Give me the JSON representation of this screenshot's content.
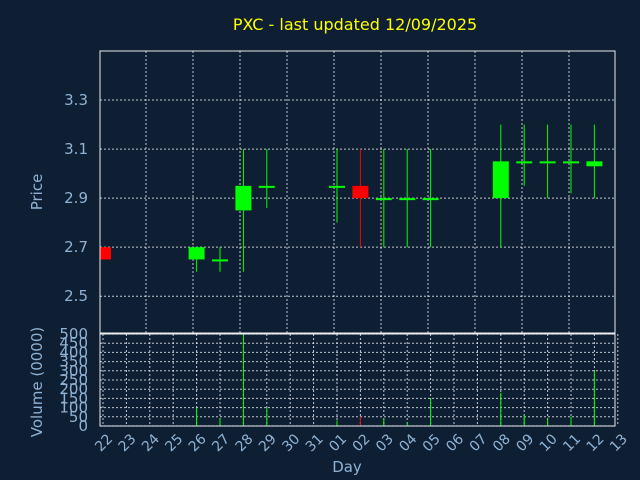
{
  "chart_data": {
    "type": "candlestick",
    "title": "PXC - last updated 12/09/2025",
    "ylabel": "Price",
    "volume_label": "Volume (0000)",
    "xlabel": "Day",
    "ylim": [
      2.35,
      3.5
    ],
    "yticks": [
      2.5,
      2.7,
      2.9,
      3.1,
      3.3
    ],
    "volume_ylim": [
      0,
      500
    ],
    "volume_yticks": [
      0,
      50,
      100,
      150,
      200,
      250,
      300,
      350,
      400,
      450,
      500
    ],
    "days": [
      "22",
      "23",
      "24",
      "25",
      "26",
      "27",
      "28",
      "29",
      "30",
      "31",
      "01",
      "02",
      "03",
      "04",
      "05",
      "06",
      "07",
      "08",
      "09",
      "10",
      "11",
      "12",
      "13"
    ],
    "candles": [
      {
        "day_index": 0,
        "open": 2.7,
        "high": 2.7,
        "low": 2.65,
        "close": 2.65,
        "volume": 0
      },
      {
        "day_index": 4,
        "open": 2.65,
        "high": 2.7,
        "low": 2.6,
        "close": 2.7,
        "volume": 100
      },
      {
        "day_index": 5,
        "open": 2.65,
        "high": 2.7,
        "low": 2.6,
        "close": 2.65,
        "volume": 40
      },
      {
        "day_index": 6,
        "open": 2.85,
        "high": 3.1,
        "low": 2.6,
        "close": 2.95,
        "volume": 500
      },
      {
        "day_index": 7,
        "open": 2.95,
        "high": 3.1,
        "low": 2.86,
        "close": 2.95,
        "volume": 100
      },
      {
        "day_index": 10,
        "open": 2.95,
        "high": 3.1,
        "low": 2.8,
        "close": 2.95,
        "volume": 30
      },
      {
        "day_index": 11,
        "open": 2.95,
        "high": 3.1,
        "low": 2.7,
        "close": 2.9,
        "volume": 50
      },
      {
        "day_index": 12,
        "open": 2.9,
        "high": 3.1,
        "low": 2.7,
        "close": 2.9,
        "volume": 40
      },
      {
        "day_index": 13,
        "open": 2.9,
        "high": 3.1,
        "low": 2.7,
        "close": 2.9,
        "volume": 20
      },
      {
        "day_index": 14,
        "open": 2.9,
        "high": 3.1,
        "low": 2.7,
        "close": 2.9,
        "volume": 150
      },
      {
        "day_index": 17,
        "open": 2.9,
        "high": 3.2,
        "low": 2.7,
        "close": 3.05,
        "volume": 180
      },
      {
        "day_index": 18,
        "open": 3.05,
        "high": 3.2,
        "low": 2.95,
        "close": 3.05,
        "volume": 60
      },
      {
        "day_index": 19,
        "open": 3.05,
        "high": 3.2,
        "low": 2.9,
        "close": 3.05,
        "volume": 40
      },
      {
        "day_index": 20,
        "open": 3.05,
        "high": 3.2,
        "low": 2.92,
        "close": 3.05,
        "volume": 50
      },
      {
        "day_index": 21,
        "open": 3.03,
        "high": 3.2,
        "low": 2.9,
        "close": 3.05,
        "volume": 300
      }
    ],
    "grid": true,
    "colors": {
      "up": "#00ff00",
      "down": "#ff0000",
      "background": "#0f1f33",
      "title": "#ffff00",
      "text": "#8fb3d6"
    }
  }
}
